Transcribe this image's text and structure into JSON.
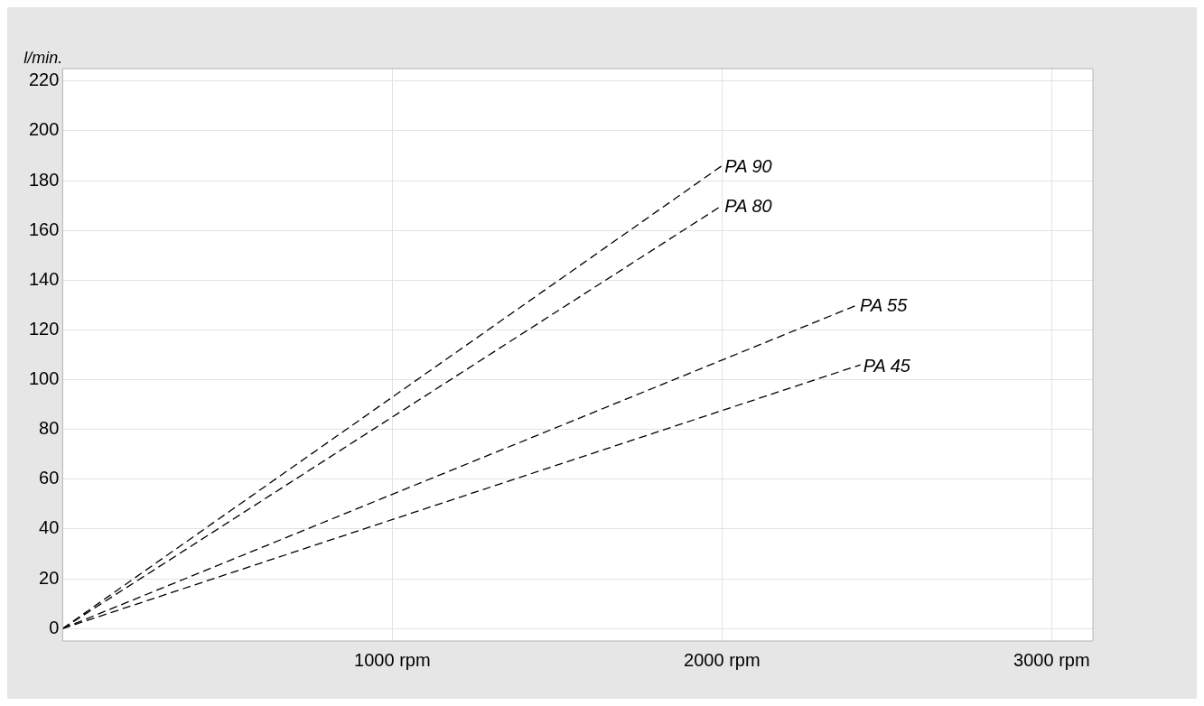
{
  "chart_data": {
    "type": "line",
    "ylabel": "l/min.",
    "xlim": [
      0,
      3125
    ],
    "xticks": [
      {
        "value": 1000,
        "label": "1000 rpm"
      },
      {
        "value": 2000,
        "label": "2000 rpm"
      },
      {
        "value": 3000,
        "label": "3000 rpm"
      }
    ],
    "ylim": [
      -5,
      225
    ],
    "yticks": [
      0,
      20,
      40,
      60,
      80,
      100,
      120,
      140,
      160,
      180,
      200,
      220
    ],
    "grid": true,
    "legend": false,
    "marker": "none",
    "line_style": "dashed",
    "series": [
      {
        "name": "PA 90",
        "color": "#000000",
        "x": [
          0,
          2000
        ],
        "values": [
          0,
          186
        ]
      },
      {
        "name": "PA 80",
        "color": "#000000",
        "x": [
          0,
          2000
        ],
        "values": [
          0,
          170
        ]
      },
      {
        "name": "PA 55",
        "color": "#000000",
        "x": [
          0,
          2410
        ],
        "values": [
          0,
          130
        ]
      },
      {
        "name": "PA 45",
        "color": "#000000",
        "x": [
          0,
          2420
        ],
        "values": [
          0,
          106
        ]
      }
    ]
  }
}
